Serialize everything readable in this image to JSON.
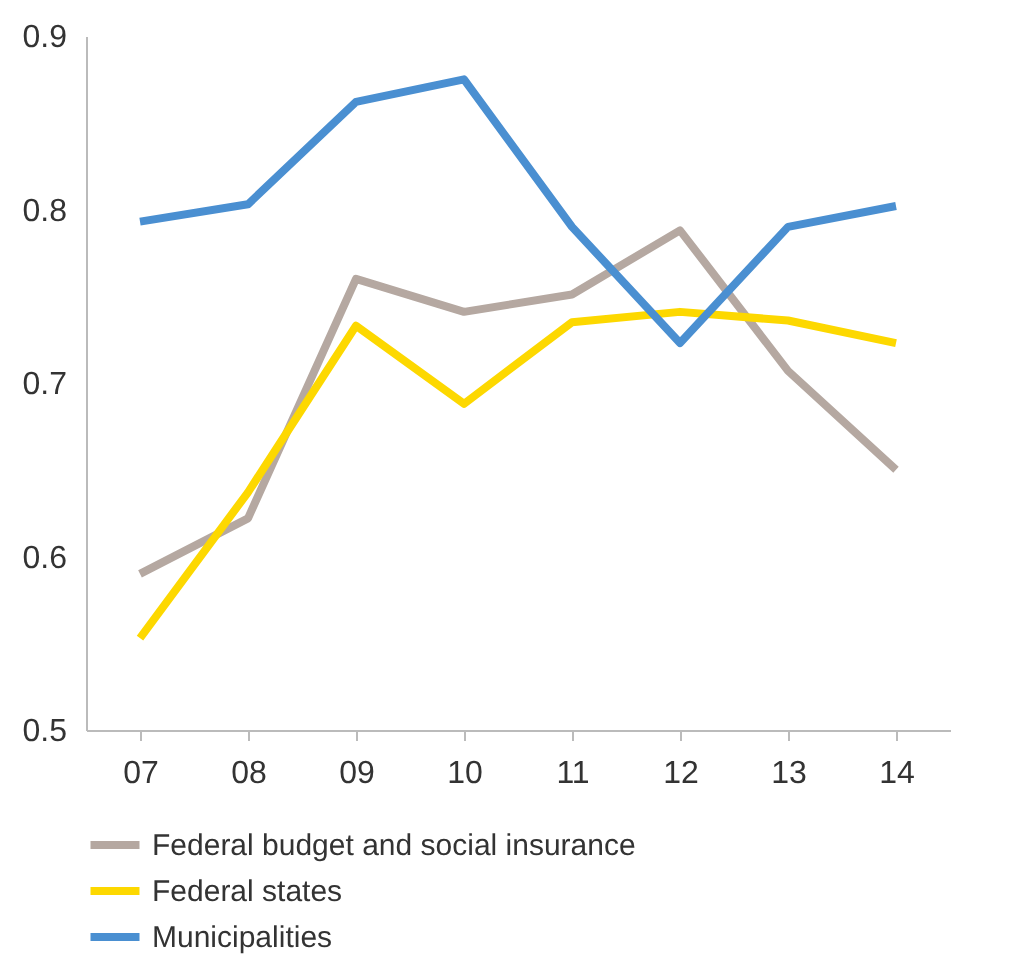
{
  "chart_data": {
    "type": "line",
    "categories": [
      "07",
      "08",
      "09",
      "10",
      "11",
      "12",
      "13",
      "14"
    ],
    "series": [
      {
        "name": "Federal budget and social insurance",
        "color": "#b5a8a1",
        "values": [
          0.59,
          0.622,
          0.76,
          0.741,
          0.751,
          0.788,
          0.707,
          0.65
        ]
      },
      {
        "name": "Federal states",
        "color": "#fdd800",
        "values": [
          0.553,
          0.637,
          0.733,
          0.688,
          0.735,
          0.741,
          0.736,
          0.723
        ]
      },
      {
        "name": "Municipalities",
        "color": "#4a8fd1",
        "values": [
          0.793,
          0.803,
          0.862,
          0.875,
          0.79,
          0.723,
          0.79,
          0.802
        ]
      }
    ],
    "ylim": [
      0.5,
      0.9
    ],
    "yticks": [
      0.5,
      0.6,
      0.7,
      0.8,
      0.9
    ],
    "grid": false,
    "legend": "bottom",
    "marker": "none",
    "line_style": "solid"
  }
}
